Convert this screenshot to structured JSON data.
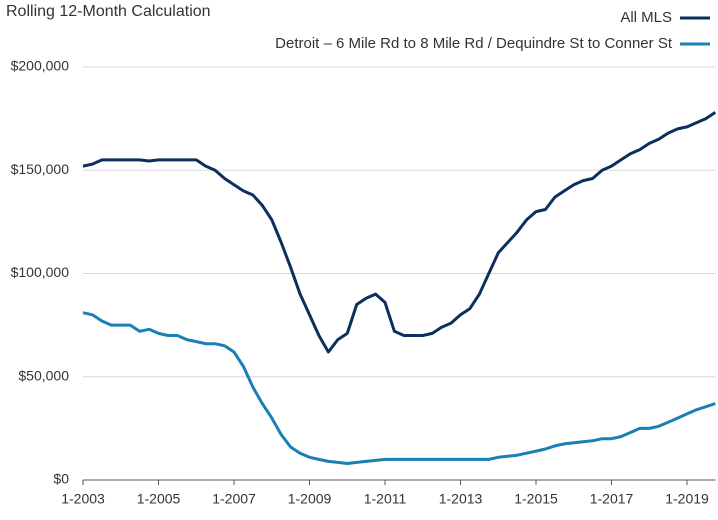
{
  "chart_data": {
    "type": "line",
    "title": "Rolling 12-Month Calculation",
    "x": [
      "1-2003",
      "4-2003",
      "7-2003",
      "10-2003",
      "1-2004",
      "4-2004",
      "7-2004",
      "10-2004",
      "1-2005",
      "4-2005",
      "7-2005",
      "10-2005",
      "1-2006",
      "4-2006",
      "7-2006",
      "10-2006",
      "1-2007",
      "4-2007",
      "7-2007",
      "10-2007",
      "1-2008",
      "4-2008",
      "7-2008",
      "10-2008",
      "1-2009",
      "4-2009",
      "7-2009",
      "10-2009",
      "1-2010",
      "4-2010",
      "7-2010",
      "10-2010",
      "1-2011",
      "4-2011",
      "7-2011",
      "10-2011",
      "1-2012",
      "4-2012",
      "7-2012",
      "10-2012",
      "1-2013",
      "4-2013",
      "7-2013",
      "10-2013",
      "1-2014",
      "4-2014",
      "7-2014",
      "10-2014",
      "1-2015",
      "4-2015",
      "7-2015",
      "10-2015",
      "1-2016",
      "4-2016",
      "7-2016",
      "10-2016",
      "1-2017",
      "4-2017",
      "7-2017",
      "10-2017",
      "1-2018",
      "4-2018",
      "7-2018",
      "10-2018",
      "1-2019",
      "4-2019",
      "7-2019",
      "10-2019"
    ],
    "xlim": [
      "1-2003",
      "10-2019"
    ],
    "xticks": [
      "1-2003",
      "1-2005",
      "1-2007",
      "1-2009",
      "1-2011",
      "1-2013",
      "1-2015",
      "1-2017",
      "1-2019"
    ],
    "ylim": [
      0,
      200000
    ],
    "yticks": [
      {
        "value": 0,
        "label": "$0"
      },
      {
        "value": 50000,
        "label": "$50,000"
      },
      {
        "value": 100000,
        "label": "$100,000"
      },
      {
        "value": 150000,
        "label": "$150,000"
      },
      {
        "value": 200000,
        "label": "$200,000"
      }
    ],
    "grid": true,
    "legend": "top-right",
    "series": [
      {
        "name": "All MLS",
        "color": "#0d2f5e",
        "values": [
          152000,
          153000,
          155000,
          155000,
          155000,
          155000,
          155000,
          154500,
          155000,
          155000,
          155000,
          155000,
          155000,
          152000,
          150000,
          146000,
          143000,
          140000,
          138000,
          133000,
          126000,
          115000,
          103000,
          90000,
          80000,
          70000,
          62000,
          68000,
          71000,
          85000,
          88000,
          90000,
          86000,
          72000,
          70000,
          70000,
          70000,
          71000,
          74000,
          76000,
          80000,
          83000,
          90000,
          100000,
          110000,
          115000,
          120000,
          126000,
          130000,
          131000,
          137000,
          140000,
          143000,
          145000,
          146000,
          150000,
          152000,
          155000,
          158000,
          160000,
          163000,
          165000,
          168000,
          170000,
          171000,
          173000,
          175000,
          178000
        ]
      },
      {
        "name": "Detroit – 6 Mile Rd to 8 Mile Rd / Dequindre St to Conner St",
        "color": "#1a7fb5",
        "values": [
          81000,
          80000,
          77000,
          75000,
          75000,
          75000,
          72000,
          73000,
          71000,
          70000,
          70000,
          68000,
          67000,
          66000,
          66000,
          65000,
          62000,
          55000,
          45000,
          37000,
          30000,
          22000,
          16000,
          13000,
          11000,
          10000,
          9000,
          8500,
          8000,
          8500,
          9000,
          9500,
          10000,
          10000,
          10000,
          10000,
          10000,
          10000,
          10000,
          10000,
          10000,
          10000,
          10000,
          10000,
          11000,
          11500,
          12000,
          13000,
          14000,
          15000,
          16500,
          17500,
          18000,
          18500,
          19000,
          20000,
          20000,
          21000,
          23000,
          25000,
          25000,
          26000,
          28000,
          30000,
          32000,
          34000,
          35500,
          37000
        ]
      }
    ]
  }
}
